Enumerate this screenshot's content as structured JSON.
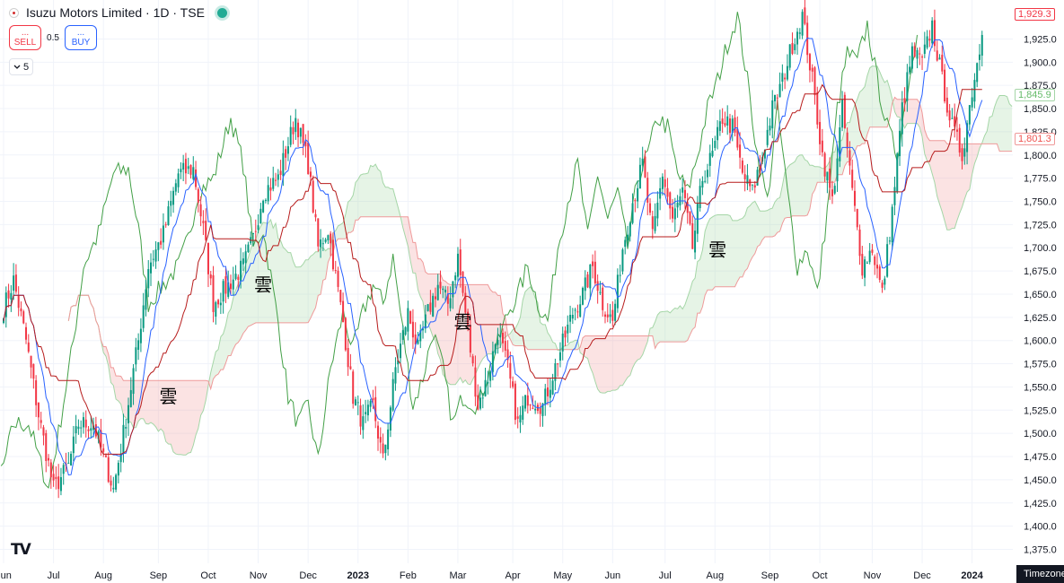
{
  "legend": {
    "symbol": "Isuzu Motors Limited · 1D · TSE",
    "flag_icon": "japan-flag-icon",
    "status_icon": "market-open-icon"
  },
  "trade": {
    "sell_dots": "...",
    "sell_label": "SELL",
    "spread": "0.5",
    "buy_dots": "...",
    "buy_label": "BUY"
  },
  "indicators_toggle": {
    "count": "5",
    "icon": "chevron-down-icon"
  },
  "price_tags": {
    "last": "1,929.3",
    "span_a": "1,845.9",
    "span_b": "1,801.3"
  },
  "timezone_label": "Timezone",
  "logo_text": "TV",
  "colors": {
    "up": "#089981",
    "down": "#f23645",
    "tenkan": "#2962ff",
    "kijun": "#b71c1c",
    "chikou": "#43a047",
    "cloud_green": "#a5d6a7",
    "cloud_red": "#ef9a9a"
  },
  "chart_data": {
    "type": "candlestick",
    "title": "Isuzu Motors Limited · 1D · TSE",
    "indicator": "Ichimoku Cloud",
    "xlabel": "",
    "ylabel": "",
    "ylim": [
      1360,
      1967
    ],
    "y_ticks": [
      "1,375.0",
      "1,400.0",
      "1,425.0",
      "1,450.0",
      "1,475.0",
      "1,500.0",
      "1,525.0",
      "1,550.0",
      "1,575.0",
      "1,600.0",
      "1,625.0",
      "1,650.0",
      "1,675.0",
      "1,700.0",
      "1,725.0",
      "1,750.0",
      "1,775.0",
      "1,800.0",
      "1,825.0",
      "1,850.0",
      "1,875.0",
      "1,900.0",
      "1,925.0"
    ],
    "y_tick_values": [
      1375,
      1400,
      1425,
      1450,
      1475,
      1500,
      1525,
      1550,
      1575,
      1600,
      1625,
      1650,
      1675,
      1700,
      1725,
      1750,
      1775,
      1800,
      1825,
      1850,
      1875,
      1900,
      1925
    ],
    "x_ticks": [
      {
        "label": "Jun",
        "bar": 0
      },
      {
        "label": "Jul",
        "bar": 20
      },
      {
        "label": "Aug",
        "bar": 40
      },
      {
        "label": "Sep",
        "bar": 62
      },
      {
        "label": "Oct",
        "bar": 82
      },
      {
        "label": "Nov",
        "bar": 102
      },
      {
        "label": "Dec",
        "bar": 122
      },
      {
        "label": "2023",
        "bar": 142,
        "bold": true
      },
      {
        "label": "Feb",
        "bar": 162
      },
      {
        "label": "Mar",
        "bar": 182
      },
      {
        "label": "Apr",
        "bar": 204
      },
      {
        "label": "May",
        "bar": 224
      },
      {
        "label": "Jun",
        "bar": 244
      },
      {
        "label": "Jul",
        "bar": 265
      },
      {
        "label": "Aug",
        "bar": 285
      },
      {
        "label": "Sep",
        "bar": 307
      },
      {
        "label": "Oct",
        "bar": 327
      },
      {
        "label": "Nov",
        "bar": 348
      },
      {
        "label": "Dec",
        "bar": 368
      },
      {
        "label": "2024",
        "bar": 388,
        "bold": true
      }
    ],
    "kumo_labels": [
      {
        "text": "雲",
        "bar": 66,
        "price": 1540
      },
      {
        "text": "雲",
        "bar": 104,
        "price": 1660
      },
      {
        "text": "雲",
        "bar": 184,
        "price": 1620
      },
      {
        "text": "雲",
        "bar": 286,
        "price": 1698
      }
    ],
    "close_anchors": [
      {
        "bar": 0,
        "close": 1635
      },
      {
        "bar": 4,
        "close": 1665
      },
      {
        "bar": 9,
        "close": 1600
      },
      {
        "bar": 14,
        "close": 1520
      },
      {
        "bar": 20,
        "close": 1440
      },
      {
        "bar": 26,
        "close": 1465
      },
      {
        "bar": 30,
        "close": 1510
      },
      {
        "bar": 36,
        "close": 1510
      },
      {
        "bar": 44,
        "close": 1440
      },
      {
        "bar": 48,
        "close": 1500
      },
      {
        "bar": 54,
        "close": 1600
      },
      {
        "bar": 58,
        "close": 1680
      },
      {
        "bar": 64,
        "close": 1715
      },
      {
        "bar": 70,
        "close": 1780
      },
      {
        "bar": 76,
        "close": 1785
      },
      {
        "bar": 80,
        "close": 1720
      },
      {
        "bar": 84,
        "close": 1640
      },
      {
        "bar": 90,
        "close": 1660
      },
      {
        "bar": 96,
        "close": 1680
      },
      {
        "bar": 100,
        "close": 1710
      },
      {
        "bar": 104,
        "close": 1760
      },
      {
        "bar": 110,
        "close": 1775
      },
      {
        "bar": 117,
        "close": 1840
      },
      {
        "bar": 122,
        "close": 1790
      },
      {
        "bar": 126,
        "close": 1700
      },
      {
        "bar": 130,
        "close": 1720
      },
      {
        "bar": 136,
        "close": 1620
      },
      {
        "bar": 140,
        "close": 1540
      },
      {
        "bar": 144,
        "close": 1510
      },
      {
        "bar": 148,
        "close": 1530
      },
      {
        "bar": 152,
        "close": 1470
      },
      {
        "bar": 157,
        "close": 1570
      },
      {
        "bar": 162,
        "close": 1630
      },
      {
        "bar": 166,
        "close": 1590
      },
      {
        "bar": 170,
        "close": 1630
      },
      {
        "bar": 174,
        "close": 1660
      },
      {
        "bar": 178,
        "close": 1640
      },
      {
        "bar": 182,
        "close": 1690
      },
      {
        "bar": 186,
        "close": 1610
      },
      {
        "bar": 190,
        "close": 1530
      },
      {
        "bar": 194,
        "close": 1560
      },
      {
        "bar": 198,
        "close": 1610
      },
      {
        "bar": 202,
        "close": 1570
      },
      {
        "bar": 206,
        "close": 1510
      },
      {
        "bar": 210,
        "close": 1540
      },
      {
        "bar": 216,
        "close": 1530
      },
      {
        "bar": 222,
        "close": 1580
      },
      {
        "bar": 228,
        "close": 1630
      },
      {
        "bar": 232,
        "close": 1650
      },
      {
        "bar": 236,
        "close": 1680
      },
      {
        "bar": 240,
        "close": 1640
      },
      {
        "bar": 244,
        "close": 1620
      },
      {
        "bar": 248,
        "close": 1700
      },
      {
        "bar": 252,
        "close": 1750
      },
      {
        "bar": 256,
        "close": 1790
      },
      {
        "bar": 260,
        "close": 1710
      },
      {
        "bar": 264,
        "close": 1780
      },
      {
        "bar": 268,
        "close": 1730
      },
      {
        "bar": 272,
        "close": 1760
      },
      {
        "bar": 276,
        "close": 1700
      },
      {
        "bar": 280,
        "close": 1775
      },
      {
        "bar": 284,
        "close": 1800
      },
      {
        "bar": 288,
        "close": 1840
      },
      {
        "bar": 292,
        "close": 1830
      },
      {
        "bar": 296,
        "close": 1780
      },
      {
        "bar": 300,
        "close": 1760
      },
      {
        "bar": 304,
        "close": 1800
      },
      {
        "bar": 308,
        "close": 1850
      },
      {
        "bar": 312,
        "close": 1880
      },
      {
        "bar": 316,
        "close": 1920
      },
      {
        "bar": 320,
        "close": 1950
      },
      {
        "bar": 324,
        "close": 1880
      },
      {
        "bar": 328,
        "close": 1800
      },
      {
        "bar": 332,
        "close": 1750
      },
      {
        "bar": 336,
        "close": 1850
      },
      {
        "bar": 340,
        "close": 1760
      },
      {
        "bar": 344,
        "close": 1680
      },
      {
        "bar": 348,
        "close": 1700
      },
      {
        "bar": 352,
        "close": 1650
      },
      {
        "bar": 356,
        "close": 1740
      },
      {
        "bar": 360,
        "close": 1850
      },
      {
        "bar": 364,
        "close": 1910
      },
      {
        "bar": 368,
        "close": 1900
      },
      {
        "bar": 372,
        "close": 1940
      },
      {
        "bar": 376,
        "close": 1880
      },
      {
        "bar": 380,
        "close": 1830
      },
      {
        "bar": 384,
        "close": 1800
      },
      {
        "bar": 388,
        "close": 1870
      },
      {
        "bar": 392,
        "close": 1929
      }
    ],
    "total_bars": 393,
    "cloud_shift": 26,
    "last_close": 1929.3,
    "span_a_last": 1845.9,
    "span_b_last": 1801.3
  }
}
